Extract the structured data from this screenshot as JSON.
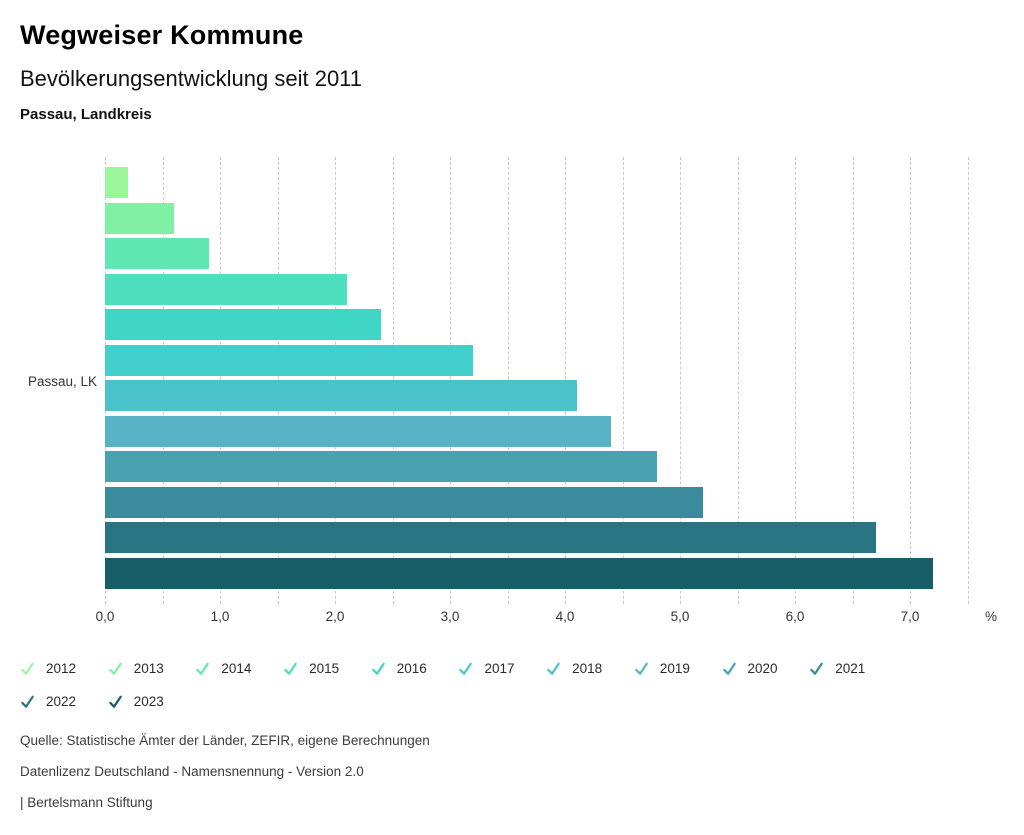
{
  "header": {
    "title": "Wegweiser Kommune",
    "subtitle": "Bevölkerungsentwicklung seit 2011",
    "region": "Passau, Landkreis"
  },
  "chart_data": {
    "type": "bar",
    "orientation": "horizontal",
    "title": "Bevölkerungsentwicklung seit 2011",
    "region": "Passau, Landkreis",
    "group_label": "Passau, LK",
    "categories": [
      "2012",
      "2013",
      "2014",
      "2015",
      "2016",
      "2017",
      "2018",
      "2019",
      "2020",
      "2021",
      "2022",
      "2023"
    ],
    "values": [
      0.2,
      0.6,
      0.9,
      2.1,
      2.4,
      3.2,
      4.1,
      4.4,
      4.8,
      5.2,
      6.7,
      7.2
    ],
    "colors": [
      "#9BF69B",
      "#7FF0A4",
      "#60E7B1",
      "#4EDFBF",
      "#3FD6C6",
      "#42CFCE",
      "#4AC2CB",
      "#59B3C6",
      "#49A0AF",
      "#3A8C9C",
      "#2A7584",
      "#175D68"
    ],
    "xlabel": "%",
    "xlim": [
      0,
      7.5
    ],
    "x_grid_step": 0.5,
    "x_tick_step": 1.0,
    "x_tick_labels": [
      "0,0",
      "1,0",
      "2,0",
      "3,0",
      "4,0",
      "5,0",
      "6,0",
      "7,0"
    ],
    "grid": true,
    "legend_position": "bottom"
  },
  "footer": {
    "source": "Quelle: Statistische Ämter der Länder, ZEFIR, eigene Berechnungen",
    "license": "Datenlizenz Deutschland - Namensnennung - Version 2.0",
    "attribution": "| Bertelsmann Stiftung"
  }
}
